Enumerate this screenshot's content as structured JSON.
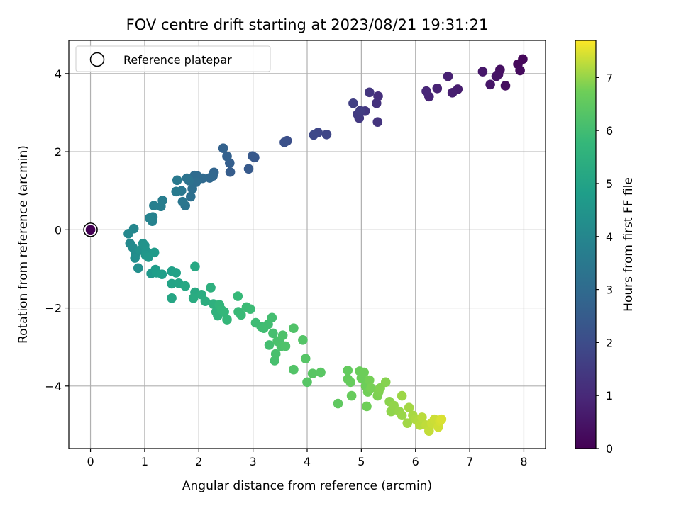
{
  "chart_data": {
    "type": "scatter",
    "title": "FOV centre drift starting at 2023/08/21 19:31:21",
    "xlabel": "Angular distance from reference (arcmin)",
    "ylabel": "Rotation from reference (arcmin)",
    "xlim": [
      -0.4,
      8.4
    ],
    "ylim": [
      -5.6,
      4.85
    ],
    "xticks": [
      0,
      1,
      2,
      3,
      4,
      5,
      6,
      7,
      8
    ],
    "yticks": [
      -4,
      -2,
      0,
      2,
      4
    ],
    "xtick_labels": [
      "0",
      "1",
      "2",
      "3",
      "4",
      "5",
      "6",
      "7",
      "8"
    ],
    "ytick_labels": [
      "−4",
      "−2",
      "0",
      "2",
      "4"
    ],
    "grid": true,
    "legend": {
      "position": "top-left",
      "entries": [
        "Reference platepar"
      ]
    },
    "colorbar": {
      "label": "Hours from first FF file",
      "colormap": "viridis",
      "range": [
        0,
        7.7
      ],
      "ticks": [
        0,
        1,
        2,
        3,
        4,
        5,
        6,
        7
      ],
      "tick_labels": [
        "0",
        "1",
        "2",
        "3",
        "4",
        "5",
        "6",
        "7"
      ]
    },
    "reference_point": {
      "x": 0,
      "y": 0,
      "hours": 0
    },
    "points": [
      {
        "x": 7.98,
        "y": 4.37,
        "h": 0.15
      },
      {
        "x": 7.89,
        "y": 4.24,
        "h": 0.2
      },
      {
        "x": 7.93,
        "y": 4.08,
        "h": 0.25
      },
      {
        "x": 7.66,
        "y": 3.69,
        "h": 0.3
      },
      {
        "x": 7.56,
        "y": 4.1,
        "h": 0.35
      },
      {
        "x": 7.53,
        "y": 3.98,
        "h": 0.4
      },
      {
        "x": 7.49,
        "y": 3.93,
        "h": 0.45
      },
      {
        "x": 7.38,
        "y": 3.72,
        "h": 0.5
      },
      {
        "x": 7.24,
        "y": 4.05,
        "h": 0.55
      },
      {
        "x": 6.78,
        "y": 3.6,
        "h": 0.7
      },
      {
        "x": 6.68,
        "y": 3.51,
        "h": 0.75
      },
      {
        "x": 6.6,
        "y": 3.93,
        "h": 0.8
      },
      {
        "x": 6.4,
        "y": 3.62,
        "h": 0.85
      },
      {
        "x": 6.25,
        "y": 3.41,
        "h": 0.9
      },
      {
        "x": 6.2,
        "y": 3.55,
        "h": 0.95
      },
      {
        "x": 5.31,
        "y": 3.42,
        "h": 1.2
      },
      {
        "x": 5.28,
        "y": 3.24,
        "h": 1.25
      },
      {
        "x": 5.3,
        "y": 2.76,
        "h": 1.3
      },
      {
        "x": 5.15,
        "y": 3.52,
        "h": 1.35
      },
      {
        "x": 5.07,
        "y": 3.04,
        "h": 1.4
      },
      {
        "x": 4.96,
        "y": 2.86,
        "h": 1.45
      },
      {
        "x": 4.93,
        "y": 2.96,
        "h": 1.5
      },
      {
        "x": 4.98,
        "y": 3.05,
        "h": 1.55
      },
      {
        "x": 4.85,
        "y": 3.24,
        "h": 1.6
      },
      {
        "x": 4.36,
        "y": 2.44,
        "h": 1.8
      },
      {
        "x": 4.2,
        "y": 2.49,
        "h": 1.85
      },
      {
        "x": 4.12,
        "y": 2.43,
        "h": 1.9
      },
      {
        "x": 3.63,
        "y": 2.28,
        "h": 2.1
      },
      {
        "x": 3.58,
        "y": 2.24,
        "h": 2.15
      },
      {
        "x": 3.03,
        "y": 1.85,
        "h": 2.35
      },
      {
        "x": 2.99,
        "y": 1.89,
        "h": 2.4
      },
      {
        "x": 2.92,
        "y": 1.56,
        "h": 2.45
      },
      {
        "x": 2.58,
        "y": 1.48,
        "h": 2.55
      },
      {
        "x": 2.57,
        "y": 1.71,
        "h": 2.6
      },
      {
        "x": 2.52,
        "y": 1.88,
        "h": 2.65
      },
      {
        "x": 2.45,
        "y": 2.09,
        "h": 2.7
      },
      {
        "x": 2.28,
        "y": 1.47,
        "h": 2.8
      },
      {
        "x": 2.26,
        "y": 1.38,
        "h": 2.85
      },
      {
        "x": 2.2,
        "y": 1.33,
        "h": 2.9
      },
      {
        "x": 2.07,
        "y": 1.32,
        "h": 2.95
      },
      {
        "x": 1.97,
        "y": 1.38,
        "h": 3.0
      },
      {
        "x": 1.92,
        "y": 1.39,
        "h": 3.05
      },
      {
        "x": 1.95,
        "y": 1.22,
        "h": 3.1
      },
      {
        "x": 1.88,
        "y": 1.05,
        "h": 3.15
      },
      {
        "x": 1.85,
        "y": 0.85,
        "h": 3.2
      },
      {
        "x": 1.82,
        "y": 1.26,
        "h": 3.25
      },
      {
        "x": 1.78,
        "y": 1.32,
        "h": 3.3
      },
      {
        "x": 1.75,
        "y": 0.62,
        "h": 3.35
      },
      {
        "x": 1.7,
        "y": 0.72,
        "h": 3.4
      },
      {
        "x": 1.68,
        "y": 1.0,
        "h": 3.45
      },
      {
        "x": 1.6,
        "y": 1.27,
        "h": 3.5
      },
      {
        "x": 1.58,
        "y": 0.98,
        "h": 3.55
      },
      {
        "x": 1.33,
        "y": 0.75,
        "h": 3.65
      },
      {
        "x": 1.3,
        "y": 0.6,
        "h": 3.7
      },
      {
        "x": 1.17,
        "y": 0.62,
        "h": 3.75
      },
      {
        "x": 1.15,
        "y": 0.33,
        "h": 3.8
      },
      {
        "x": 1.14,
        "y": 0.22,
        "h": 3.85
      },
      {
        "x": 1.09,
        "y": 0.3,
        "h": 3.9
      },
      {
        "x": 0.8,
        "y": 0.03,
        "h": 4.0
      },
      {
        "x": 0.7,
        "y": -0.1,
        "h": 4.05
      },
      {
        "x": 0.73,
        "y": -0.35,
        "h": 4.1
      },
      {
        "x": 0.78,
        "y": -0.45,
        "h": 4.15
      },
      {
        "x": 0.83,
        "y": -0.62,
        "h": 4.2
      },
      {
        "x": 0.82,
        "y": -0.72,
        "h": 4.25
      },
      {
        "x": 0.88,
        "y": -0.98,
        "h": 4.3
      },
      {
        "x": 0.92,
        "y": -0.52,
        "h": 4.35
      },
      {
        "x": 0.97,
        "y": -0.35,
        "h": 4.4
      },
      {
        "x": 1.0,
        "y": -0.4,
        "h": 4.45
      },
      {
        "x": 1.03,
        "y": -0.55,
        "h": 4.5
      },
      {
        "x": 1.02,
        "y": -0.65,
        "h": 4.55
      },
      {
        "x": 1.07,
        "y": -0.7,
        "h": 4.6
      },
      {
        "x": 1.12,
        "y": -1.12,
        "h": 4.65
      },
      {
        "x": 1.18,
        "y": -0.58,
        "h": 4.7
      },
      {
        "x": 1.2,
        "y": -1.02,
        "h": 4.75
      },
      {
        "x": 1.22,
        "y": -1.1,
        "h": 4.8
      },
      {
        "x": 1.32,
        "y": -1.14,
        "h": 4.85
      },
      {
        "x": 1.5,
        "y": -1.06,
        "h": 4.9
      },
      {
        "x": 1.58,
        "y": -1.1,
        "h": 4.95
      },
      {
        "x": 1.5,
        "y": -1.38,
        "h": 5.0
      },
      {
        "x": 1.63,
        "y": -1.37,
        "h": 5.05
      },
      {
        "x": 1.5,
        "y": -1.75,
        "h": 5.1
      },
      {
        "x": 1.75,
        "y": -1.44,
        "h": 5.15
      },
      {
        "x": 1.93,
        "y": -0.94,
        "h": 5.2
      },
      {
        "x": 1.93,
        "y": -1.6,
        "h": 5.25
      },
      {
        "x": 1.9,
        "y": -1.75,
        "h": 5.3
      },
      {
        "x": 2.05,
        "y": -1.66,
        "h": 5.35
      },
      {
        "x": 2.12,
        "y": -1.83,
        "h": 5.4
      },
      {
        "x": 2.22,
        "y": -1.48,
        "h": 5.45
      },
      {
        "x": 2.27,
        "y": -1.9,
        "h": 5.5
      },
      {
        "x": 2.32,
        "y": -2.1,
        "h": 5.55
      },
      {
        "x": 2.35,
        "y": -2.2,
        "h": 5.6
      },
      {
        "x": 2.38,
        "y": -1.92,
        "h": 5.65
      },
      {
        "x": 2.42,
        "y": -2.05,
        "h": 5.7
      },
      {
        "x": 2.47,
        "y": -2.1,
        "h": 5.72
      },
      {
        "x": 2.52,
        "y": -2.3,
        "h": 5.75
      },
      {
        "x": 2.72,
        "y": -1.7,
        "h": 5.8
      },
      {
        "x": 2.73,
        "y": -2.1,
        "h": 5.82
      },
      {
        "x": 2.78,
        "y": -2.18,
        "h": 5.85
      },
      {
        "x": 2.88,
        "y": -1.98,
        "h": 5.88
      },
      {
        "x": 2.95,
        "y": -2.03,
        "h": 5.9
      },
      {
        "x": 3.05,
        "y": -2.38,
        "h": 5.93
      },
      {
        "x": 3.15,
        "y": -2.48,
        "h": 5.95
      },
      {
        "x": 3.2,
        "y": -2.52,
        "h": 5.98
      },
      {
        "x": 3.28,
        "y": -2.42,
        "h": 6.0
      },
      {
        "x": 3.35,
        "y": -2.25,
        "h": 6.03
      },
      {
        "x": 3.3,
        "y": -2.95,
        "h": 6.05
      },
      {
        "x": 3.37,
        "y": -2.65,
        "h": 6.08
      },
      {
        "x": 3.4,
        "y": -3.35,
        "h": 6.1
      },
      {
        "x": 3.42,
        "y": -3.18,
        "h": 6.12
      },
      {
        "x": 3.45,
        "y": -2.85,
        "h": 6.14
      },
      {
        "x": 3.5,
        "y": -2.9,
        "h": 6.16
      },
      {
        "x": 3.52,
        "y": -2.98,
        "h": 6.18
      },
      {
        "x": 3.55,
        "y": -2.7,
        "h": 6.2
      },
      {
        "x": 3.6,
        "y": -2.98,
        "h": 6.22
      },
      {
        "x": 3.75,
        "y": -2.52,
        "h": 6.25
      },
      {
        "x": 3.75,
        "y": -3.58,
        "h": 6.28
      },
      {
        "x": 3.92,
        "y": -2.82,
        "h": 6.3
      },
      {
        "x": 3.97,
        "y": -3.3,
        "h": 6.33
      },
      {
        "x": 4.0,
        "y": -3.9,
        "h": 6.35
      },
      {
        "x": 4.1,
        "y": -3.68,
        "h": 6.38
      },
      {
        "x": 4.25,
        "y": -3.65,
        "h": 6.4
      },
      {
        "x": 4.57,
        "y": -4.45,
        "h": 6.5
      },
      {
        "x": 4.75,
        "y": -3.6,
        "h": 6.55
      },
      {
        "x": 4.75,
        "y": -3.82,
        "h": 6.58
      },
      {
        "x": 4.8,
        "y": -3.9,
        "h": 6.6
      },
      {
        "x": 4.82,
        "y": -4.25,
        "h": 6.62
      },
      {
        "x": 4.97,
        "y": -3.62,
        "h": 6.65
      },
      {
        "x": 5.0,
        "y": -3.8,
        "h": 6.68
      },
      {
        "x": 5.05,
        "y": -3.65,
        "h": 6.7
      },
      {
        "x": 5.08,
        "y": -4.0,
        "h": 6.72
      },
      {
        "x": 5.1,
        "y": -4.52,
        "h": 6.74
      },
      {
        "x": 5.12,
        "y": -4.15,
        "h": 6.76
      },
      {
        "x": 5.15,
        "y": -3.85,
        "h": 6.78
      },
      {
        "x": 5.18,
        "y": -4.05,
        "h": 6.8
      },
      {
        "x": 5.3,
        "y": -4.25,
        "h": 6.83
      },
      {
        "x": 5.32,
        "y": -4.15,
        "h": 6.85
      },
      {
        "x": 5.35,
        "y": -4.05,
        "h": 6.87
      },
      {
        "x": 5.45,
        "y": -3.9,
        "h": 6.9
      },
      {
        "x": 5.52,
        "y": -4.4,
        "h": 6.93
      },
      {
        "x": 5.55,
        "y": -4.65,
        "h": 6.96
      },
      {
        "x": 5.6,
        "y": -4.5,
        "h": 6.98
      },
      {
        "x": 5.7,
        "y": -4.65,
        "h": 7.0
      },
      {
        "x": 5.75,
        "y": -4.75,
        "h": 7.03
      },
      {
        "x": 5.75,
        "y": -4.25,
        "h": 7.05
      },
      {
        "x": 5.85,
        "y": -4.95,
        "h": 7.08
      },
      {
        "x": 5.88,
        "y": -4.55,
        "h": 7.1
      },
      {
        "x": 5.95,
        "y": -4.75,
        "h": 7.13
      },
      {
        "x": 6.0,
        "y": -4.85,
        "h": 7.16
      },
      {
        "x": 6.05,
        "y": -4.9,
        "h": 7.19
      },
      {
        "x": 6.08,
        "y": -5.0,
        "h": 7.22
      },
      {
        "x": 6.12,
        "y": -4.8,
        "h": 7.25
      },
      {
        "x": 6.2,
        "y": -5.0,
        "h": 7.28
      },
      {
        "x": 6.25,
        "y": -5.15,
        "h": 7.31
      },
      {
        "x": 6.3,
        "y": -4.95,
        "h": 7.34
      },
      {
        "x": 6.35,
        "y": -4.85,
        "h": 7.37
      },
      {
        "x": 6.42,
        "y": -5.05,
        "h": 7.4
      },
      {
        "x": 6.45,
        "y": -4.9,
        "h": 7.43
      },
      {
        "x": 6.48,
        "y": -4.85,
        "h": 7.46
      }
    ]
  }
}
